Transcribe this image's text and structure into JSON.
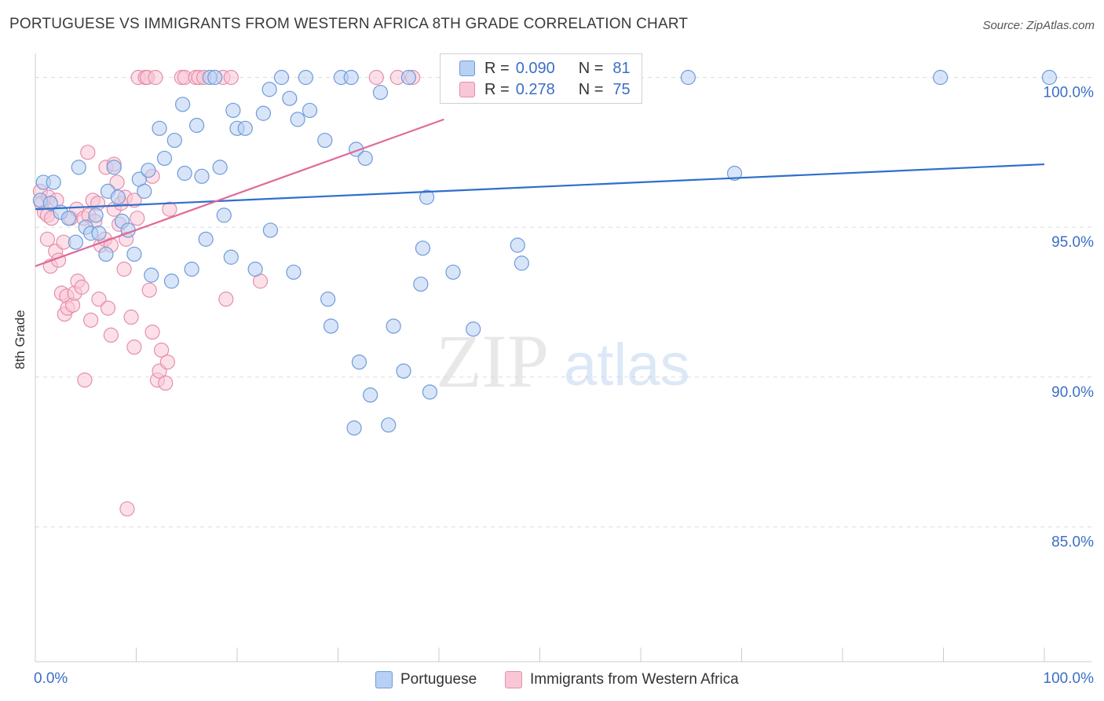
{
  "title": "PORTUGUESE VS IMMIGRANTS FROM WESTERN AFRICA 8TH GRADE CORRELATION CHART",
  "source": "Source: ZipAtlas.com",
  "watermark": {
    "zip": "ZIP",
    "atlas": "atlas"
  },
  "colors": {
    "blue_fill": "#b8d0f4",
    "blue_stroke": "#6f9bd8",
    "blue_line": "#2e6fcc",
    "pink_fill": "#f9c6d6",
    "pink_stroke": "#e48fac",
    "pink_line": "#e06a98",
    "axis_text": "#3b6fc5",
    "grid": "#dddddd"
  },
  "legend": {
    "r_label": "R =",
    "n_label": "N =",
    "rows": [
      {
        "r": "0.090",
        "n": "81",
        "color": "blue"
      },
      {
        "r": "0.278",
        "n": "75",
        "color": "pink"
      }
    ]
  },
  "bottom_legend": {
    "portuguese": "Portuguese",
    "immigrants": "Immigrants from Western Africa"
  },
  "chart_data": {
    "type": "scatter",
    "title": "PORTUGUESE VS IMMIGRANTS FROM WESTERN AFRICA 8TH GRADE CORRELATION CHART",
    "xlabel": "",
    "ylabel": "8th Grade",
    "xlim": [
      0,
      100
    ],
    "ylim": [
      80.5,
      100.8
    ],
    "x_tick_labels": [
      "0.0%",
      "100.0%"
    ],
    "y_ticks": [
      85,
      90,
      95,
      100
    ],
    "y_tick_labels": [
      "85.0%",
      "90.0%",
      "95.0%",
      "100.0%"
    ],
    "series": [
      {
        "name": "Portuguese",
        "color": "blue",
        "trend": {
          "x0": 0,
          "y0": 95.6,
          "x1": 100,
          "y1": 97.1
        },
        "points": [
          [
            0.5,
            95.9
          ],
          [
            0.8,
            96.5
          ],
          [
            1.5,
            95.8
          ],
          [
            1.8,
            96.5
          ],
          [
            2.5,
            95.5
          ],
          [
            3.3,
            95.3
          ],
          [
            4,
            94.5
          ],
          [
            4.3,
            97.0
          ],
          [
            5,
            95.0
          ],
          [
            5.5,
            94.8
          ],
          [
            6,
            95.4
          ],
          [
            6.3,
            94.8
          ],
          [
            7,
            94.1
          ],
          [
            7.2,
            96.2
          ],
          [
            7.8,
            97.0
          ],
          [
            8.2,
            96.0
          ],
          [
            8.6,
            95.2
          ],
          [
            9.2,
            94.9
          ],
          [
            9.8,
            94.1
          ],
          [
            10.3,
            96.6
          ],
          [
            10.8,
            96.2
          ],
          [
            11.2,
            96.9
          ],
          [
            11.5,
            93.4
          ],
          [
            12.3,
            98.3
          ],
          [
            12.8,
            97.3
          ],
          [
            13.5,
            93.2
          ],
          [
            13.8,
            97.9
          ],
          [
            14.6,
            99.1
          ],
          [
            14.8,
            96.8
          ],
          [
            15.5,
            93.6
          ],
          [
            16,
            98.4
          ],
          [
            16.5,
            96.7
          ],
          [
            16.9,
            94.6
          ],
          [
            17.3,
            100
          ],
          [
            17.8,
            100
          ],
          [
            18.3,
            97.0
          ],
          [
            18.7,
            95.4
          ],
          [
            19.4,
            94.0
          ],
          [
            19.6,
            98.9
          ],
          [
            20,
            98.3
          ],
          [
            20.8,
            98.3
          ],
          [
            21.8,
            93.6
          ],
          [
            22.6,
            98.8
          ],
          [
            23.2,
            99.6
          ],
          [
            23.3,
            94.9
          ],
          [
            24.4,
            100
          ],
          [
            25.2,
            99.3
          ],
          [
            25.6,
            93.5
          ],
          [
            26,
            98.6
          ],
          [
            26.8,
            100
          ],
          [
            27.2,
            98.9
          ],
          [
            28.7,
            97.9
          ],
          [
            29,
            92.6
          ],
          [
            29.3,
            91.7
          ],
          [
            30.3,
            100
          ],
          [
            31.3,
            100
          ],
          [
            31.6,
            88.3
          ],
          [
            32.1,
            90.5
          ],
          [
            31.8,
            97.6
          ],
          [
            32.7,
            97.3
          ],
          [
            33.2,
            89.4
          ],
          [
            34.2,
            99.5
          ],
          [
            35,
            88.4
          ],
          [
            35.5,
            91.7
          ],
          [
            36.5,
            90.2
          ],
          [
            37,
            100
          ],
          [
            38.2,
            93.1
          ],
          [
            38.4,
            94.3
          ],
          [
            38.8,
            96.0
          ],
          [
            39.1,
            89.5
          ],
          [
            41.4,
            93.5
          ],
          [
            43.4,
            91.6
          ],
          [
            45.5,
            100
          ],
          [
            46,
            100
          ],
          [
            47.8,
            94.4
          ],
          [
            48.2,
            93.8
          ],
          [
            64.7,
            100
          ],
          [
            69.3,
            96.8
          ],
          [
            89.7,
            100
          ],
          [
            100.5,
            100
          ]
        ]
      },
      {
        "name": "Immigrants from Western Africa",
        "color": "pink",
        "trend": {
          "x0": 0,
          "y0": 93.7,
          "x1": 40.5,
          "y1": 98.6
        },
        "points": [
          [
            0.5,
            96.2
          ],
          [
            0.6,
            95.8
          ],
          [
            0.9,
            95.5
          ],
          [
            1.2,
            95.4
          ],
          [
            1.3,
            96.0
          ],
          [
            1.6,
            95.3
          ],
          [
            1.2,
            94.6
          ],
          [
            1.5,
            93.7
          ],
          [
            2,
            94.2
          ],
          [
            2.1,
            95.9
          ],
          [
            2.3,
            93.9
          ],
          [
            2.6,
            92.8
          ],
          [
            2.8,
            94.5
          ],
          [
            2.9,
            92.1
          ],
          [
            3.1,
            92.7
          ],
          [
            3.2,
            92.3
          ],
          [
            3.5,
            95.3
          ],
          [
            3.7,
            92.4
          ],
          [
            3.9,
            92.8
          ],
          [
            4.1,
            95.6
          ],
          [
            4.2,
            93.2
          ],
          [
            4.6,
            93.0
          ],
          [
            4.8,
            95.3
          ],
          [
            4.9,
            89.9
          ],
          [
            5.2,
            97.5
          ],
          [
            5.3,
            95.4
          ],
          [
            5.5,
            91.9
          ],
          [
            5.7,
            95.9
          ],
          [
            5.9,
            95.2
          ],
          [
            6.2,
            95.8
          ],
          [
            6.3,
            92.6
          ],
          [
            6.5,
            94.4
          ],
          [
            6.9,
            94.6
          ],
          [
            7,
            97.0
          ],
          [
            7.2,
            92.3
          ],
          [
            7.5,
            91.4
          ],
          [
            7.5,
            94.4
          ],
          [
            7.8,
            97.1
          ],
          [
            7.8,
            95.6
          ],
          [
            8.1,
            96.5
          ],
          [
            8.3,
            95.1
          ],
          [
            8.5,
            95.8
          ],
          [
            8.8,
            93.6
          ],
          [
            8.9,
            96.0
          ],
          [
            9,
            94.6
          ],
          [
            9.1,
            85.6
          ],
          [
            9.5,
            92.0
          ],
          [
            9.8,
            91.0
          ],
          [
            9.8,
            95.9
          ],
          [
            10.1,
            95.3
          ],
          [
            10.2,
            100
          ],
          [
            10.9,
            100
          ],
          [
            11.1,
            100
          ],
          [
            11.3,
            92.9
          ],
          [
            11.6,
            96.7
          ],
          [
            11.6,
            91.5
          ],
          [
            11.9,
            100
          ],
          [
            12.1,
            89.9
          ],
          [
            12.3,
            90.2
          ],
          [
            12.5,
            90.9
          ],
          [
            12.9,
            89.8
          ],
          [
            13.1,
            90.5
          ],
          [
            13.3,
            95.6
          ],
          [
            14.5,
            100
          ],
          [
            14.8,
            100
          ],
          [
            15.9,
            100
          ],
          [
            16.2,
            100
          ],
          [
            16.7,
            100
          ],
          [
            18.6,
            100
          ],
          [
            18.9,
            92.6
          ],
          [
            19.4,
            100
          ],
          [
            22.3,
            93.2
          ],
          [
            33.8,
            100
          ],
          [
            35.9,
            100
          ],
          [
            37.4,
            100
          ]
        ]
      }
    ]
  }
}
